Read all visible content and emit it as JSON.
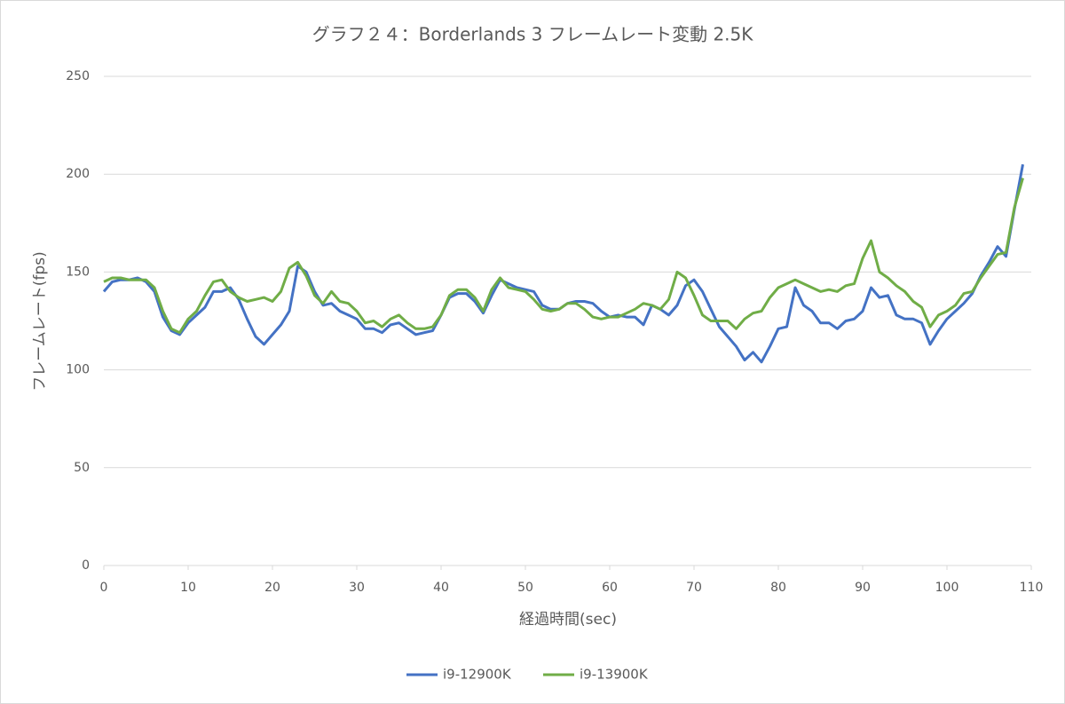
{
  "chart_data": {
    "type": "line",
    "title": "グラフ２４：Borderlands 3 フレームレート変動 2.5K",
    "x_label": "経過時間(sec)",
    "y_label": "フレームレート(fps)",
    "x": [
      0,
      1,
      2,
      3,
      4,
      5,
      6,
      7,
      8,
      9,
      10,
      11,
      12,
      13,
      14,
      15,
      16,
      17,
      18,
      19,
      20,
      21,
      22,
      23,
      24,
      25,
      26,
      27,
      28,
      29,
      30,
      31,
      32,
      33,
      34,
      35,
      36,
      37,
      38,
      39,
      40,
      41,
      42,
      43,
      44,
      45,
      46,
      47,
      48,
      49,
      50,
      51,
      52,
      53,
      54,
      55,
      56,
      57,
      58,
      59,
      60,
      61,
      62,
      63,
      64,
      65,
      66,
      67,
      68,
      69,
      70,
      71,
      72,
      73,
      74,
      75,
      76,
      77,
      78,
      79,
      80,
      81,
      82,
      83,
      84,
      85,
      86,
      87,
      88,
      89,
      90,
      91,
      92,
      93,
      94,
      95,
      96,
      97,
      98,
      99,
      100,
      101,
      102,
      103,
      104,
      105,
      106,
      107,
      108,
      109
    ],
    "series": [
      {
        "name": "i9-12900K",
        "color": "#4472c4",
        "values": [
          140,
          145,
          146,
          146,
          147,
          145,
          140,
          127,
          120,
          118,
          124,
          128,
          132,
          140,
          140,
          142,
          136,
          126,
          117,
          113,
          118,
          123,
          130,
          153,
          150,
          140,
          133,
          134,
          130,
          128,
          126,
          121,
          121,
          119,
          123,
          124,
          121,
          118,
          119,
          120,
          128,
          137,
          139,
          139,
          135,
          129,
          138,
          146,
          144,
          142,
          141,
          140,
          133,
          131,
          131,
          134,
          135,
          135,
          134,
          130,
          127,
          128,
          127,
          127,
          123,
          133,
          131,
          128,
          133,
          143,
          146,
          140,
          131,
          122,
          117,
          112,
          105,
          109,
          104,
          112,
          121,
          122,
          142,
          133,
          130,
          124,
          124,
          121,
          125,
          126,
          130,
          142,
          137,
          138,
          128,
          126,
          126,
          124,
          113,
          120,
          126,
          130,
          134,
          139,
          148,
          155,
          163,
          158,
          182,
          205
        ]
      },
      {
        "name": "i9-13900K",
        "color": "#70ad47",
        "values": [
          145,
          147,
          147,
          146,
          146,
          146,
          142,
          130,
          121,
          119,
          126,
          130,
          138,
          145,
          146,
          140,
          137,
          135,
          136,
          137,
          135,
          140,
          152,
          155,
          148,
          138,
          134,
          140,
          135,
          134,
          130,
          124,
          125,
          122,
          126,
          128,
          124,
          121,
          121,
          122,
          128,
          138,
          141,
          141,
          137,
          130,
          141,
          147,
          142,
          141,
          140,
          136,
          131,
          130,
          131,
          134,
          134,
          131,
          127,
          126,
          127,
          127,
          129,
          131,
          134,
          133,
          131,
          136,
          150,
          147,
          138,
          128,
          125,
          125,
          125,
          121,
          126,
          129,
          130,
          137,
          142,
          144,
          146,
          144,
          142,
          140,
          141,
          140,
          143,
          144,
          157,
          166,
          150,
          147,
          143,
          140,
          135,
          132,
          122,
          128,
          130,
          133,
          139,
          140,
          147,
          153,
          159,
          160,
          183,
          198
        ]
      }
    ],
    "xlim": [
      0,
      110
    ],
    "xticks": [
      0,
      10,
      20,
      30,
      40,
      50,
      60,
      70,
      80,
      90,
      100,
      110
    ],
    "ylim": [
      0,
      250
    ],
    "yticks": [
      0,
      50,
      100,
      150,
      200,
      250
    ],
    "grid": true,
    "legend": "bottom"
  }
}
